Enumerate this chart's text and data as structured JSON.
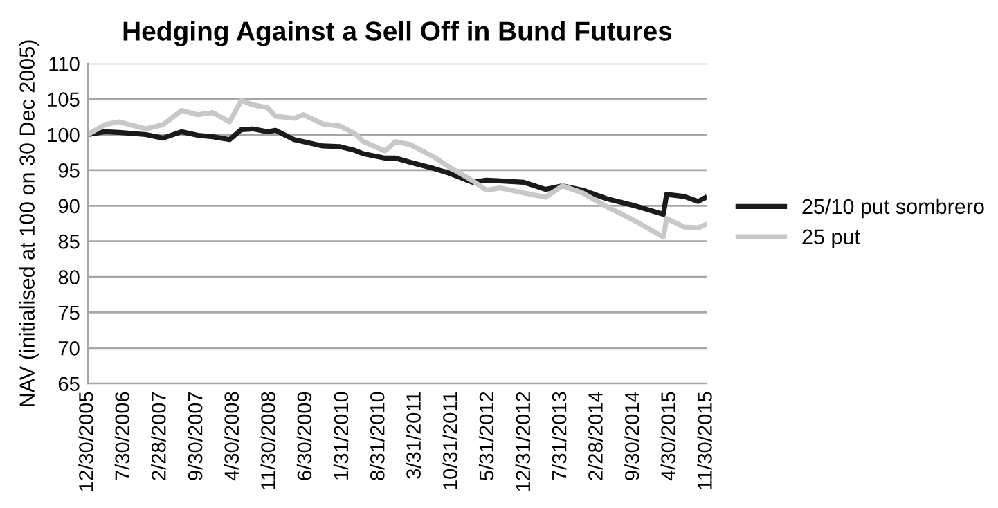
{
  "chart_data": {
    "type": "line",
    "title": "Hedging Against a Sell Off in Bund Futures",
    "ylabel": "NAV (initialised at 100 on 30 Dec 2005)",
    "x": [
      "2005-12-30",
      "2006-04-08",
      "2006-07-01",
      "2006-12-05",
      "2007-03-15",
      "2007-07-01",
      "2007-10-05",
      "2008-01-01",
      "2008-04-08",
      "2008-06-15",
      "2008-08-22",
      "2008-11-15",
      "2009-01-01",
      "2009-04-20",
      "2009-06-15",
      "2009-10-05",
      "2010-01-15",
      "2010-04-08",
      "2010-06-01",
      "2010-10-05",
      "2010-12-05",
      "2011-03-01",
      "2011-07-22",
      "2011-10-12",
      "2012-03-01",
      "2012-05-20",
      "2012-08-08",
      "2012-12-25",
      "2013-05-01",
      "2013-08-08",
      "2013-12-05",
      "2014-04-22",
      "2014-10-05",
      "2015-03-22",
      "2015-04-10",
      "2015-07-22",
      "2015-10-12",
      "2015-11-20"
    ],
    "series": [
      {
        "name": "25/10 put sombrero",
        "color": "#1a1a1a",
        "values": [
          100,
          100.4,
          100.3,
          100.0,
          99.5,
          100.4,
          99.9,
          99.7,
          99.3,
          100.7,
          100.8,
          100.4,
          100.6,
          99.3,
          99.0,
          98.4,
          98.3,
          97.8,
          97.3,
          96.7,
          96.7,
          96.1,
          95.2,
          94.6,
          93.3,
          93.6,
          93.5,
          93.3,
          92.3,
          92.8,
          92.2,
          91.0,
          90.0,
          88.8,
          91.6,
          91.3,
          90.6,
          91.1
        ]
      },
      {
        "name": "25 put",
        "color": "#c8c8c8",
        "values": [
          100,
          101.4,
          101.8,
          100.8,
          101.4,
          103.4,
          102.8,
          103.1,
          101.8,
          104.8,
          104.2,
          103.8,
          102.6,
          102.3,
          102.8,
          101.5,
          101.2,
          100.2,
          99.0,
          97.7,
          99.0,
          98.6,
          96.8,
          95.5,
          93.5,
          92.2,
          92.5,
          91.8,
          91.2,
          92.8,
          91.8,
          89.9,
          87.9,
          85.6,
          88.2,
          87.0,
          86.9,
          87.3
        ]
      }
    ],
    "xlim": [
      "2005-12-30",
      "2015-11-30"
    ],
    "xticks": [
      {
        "value": "2005-12-30",
        "label": "12/30/2005"
      },
      {
        "value": "2006-07-30",
        "label": "7/30/2006"
      },
      {
        "value": "2007-02-28",
        "label": "2/28/2007"
      },
      {
        "value": "2007-09-30",
        "label": "9/30/2007"
      },
      {
        "value": "2008-04-30",
        "label": "4/30/2008"
      },
      {
        "value": "2008-11-30",
        "label": "11/30/2008"
      },
      {
        "value": "2009-06-30",
        "label": "6/30/2009"
      },
      {
        "value": "2010-01-31",
        "label": "1/31/2010"
      },
      {
        "value": "2010-08-31",
        "label": "8/31/2010"
      },
      {
        "value": "2011-03-31",
        "label": "3/31/2011"
      },
      {
        "value": "2011-10-31",
        "label": "10/31/2011"
      },
      {
        "value": "2012-05-31",
        "label": "5/31/2012"
      },
      {
        "value": "2012-12-31",
        "label": "12/31/2012"
      },
      {
        "value": "2013-07-31",
        "label": "7/31/2013"
      },
      {
        "value": "2014-02-28",
        "label": "2/28/2014"
      },
      {
        "value": "2014-09-30",
        "label": "9/30/2014"
      },
      {
        "value": "2015-04-30",
        "label": "4/30/2015"
      },
      {
        "value": "2015-11-30",
        "label": "11/30/2015"
      }
    ],
    "ylim": [
      65,
      110
    ],
    "yticks": [
      65,
      70,
      75,
      80,
      85,
      90,
      95,
      100,
      105,
      110
    ],
    "grid": "y",
    "legend": "right",
    "marker": "none",
    "line_style": "solid"
  }
}
